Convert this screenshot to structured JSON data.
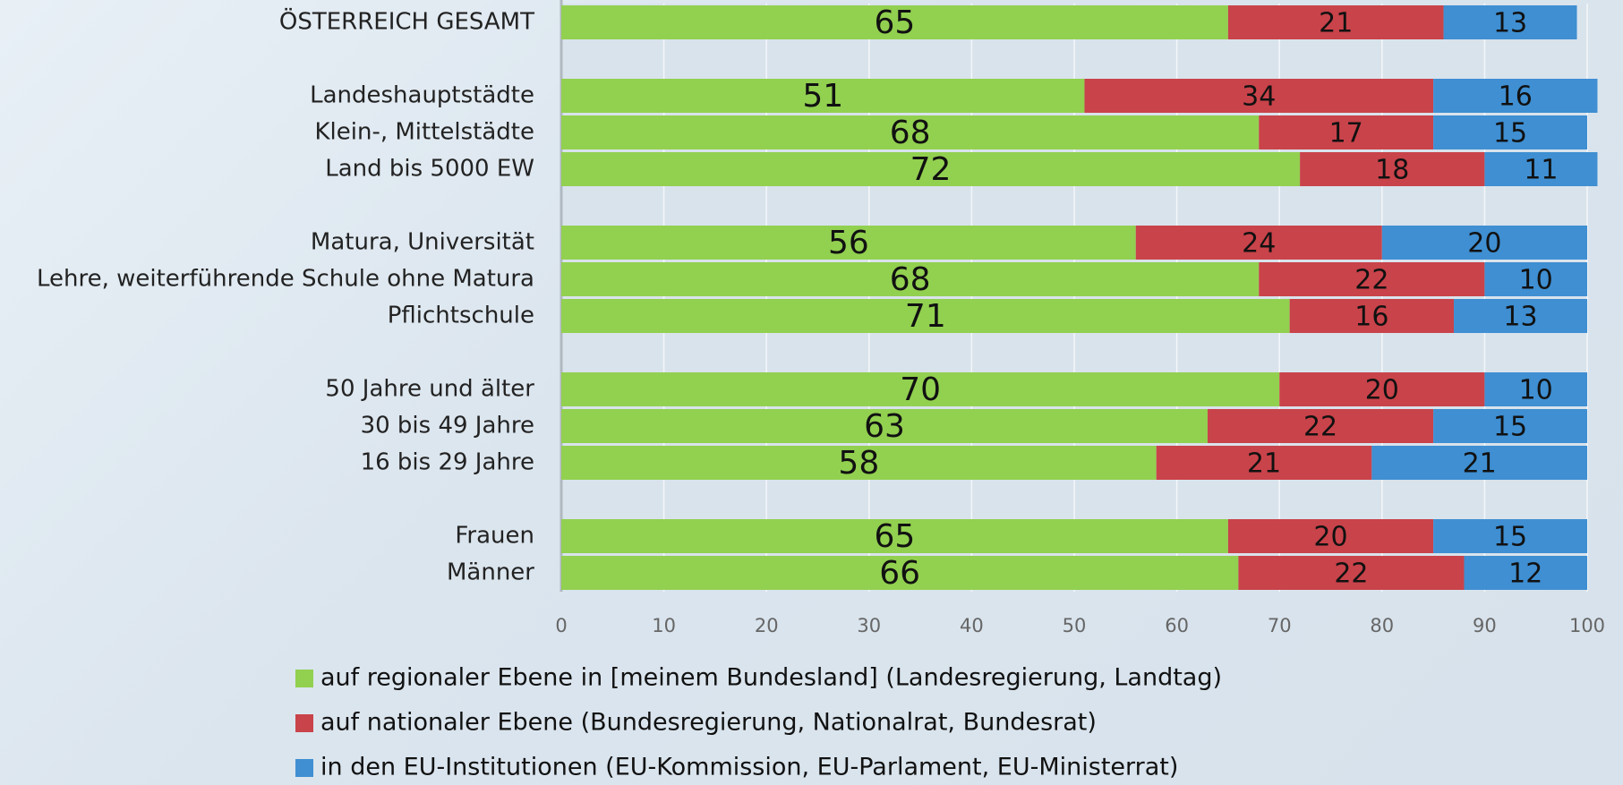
{
  "chart_data": {
    "type": "stacked-bar-horizontal",
    "categories": [
      "ÖSTERREICH GESAMT",
      null,
      "Landeshauptstädte",
      "Klein-, Mittelstädte",
      "Land bis 5000 EW",
      null,
      "Matura, Universität",
      "Lehre, weiterführende Schule ohne Matura",
      "Pflichtschule",
      null,
      "50 Jahre und älter",
      "30 bis 49 Jahre",
      "16 bis 29 Jahre",
      null,
      "Frauen",
      "Männer"
    ],
    "series": [
      {
        "name": "auf regionaler Ebene in [meinem Bundesland] (Landesregierung, Landtag)",
        "color": "#92d050",
        "values": [
          65,
          null,
          51,
          68,
          72,
          null,
          56,
          68,
          71,
          null,
          70,
          63,
          58,
          null,
          65,
          66
        ]
      },
      {
        "name": "auf nationaler Ebene (Bundesregierung, Nationalrat, Bundesrat)",
        "color": "#c9434a",
        "values": [
          21,
          null,
          34,
          17,
          18,
          null,
          24,
          22,
          16,
          null,
          20,
          22,
          21,
          null,
          20,
          22
        ]
      },
      {
        "name": "in den EU-Institutionen (EU-Kommission, EU-Parlament, EU-Ministerrat)",
        "color": "#3f8fd2",
        "values": [
          13,
          null,
          16,
          15,
          11,
          null,
          20,
          10,
          13,
          null,
          10,
          15,
          21,
          null,
          15,
          12
        ]
      }
    ],
    "xlim": [
      0,
      100
    ],
    "xticks": [
      0,
      10,
      20,
      30,
      40,
      50,
      60,
      70,
      80,
      90,
      100
    ],
    "grid": true
  }
}
